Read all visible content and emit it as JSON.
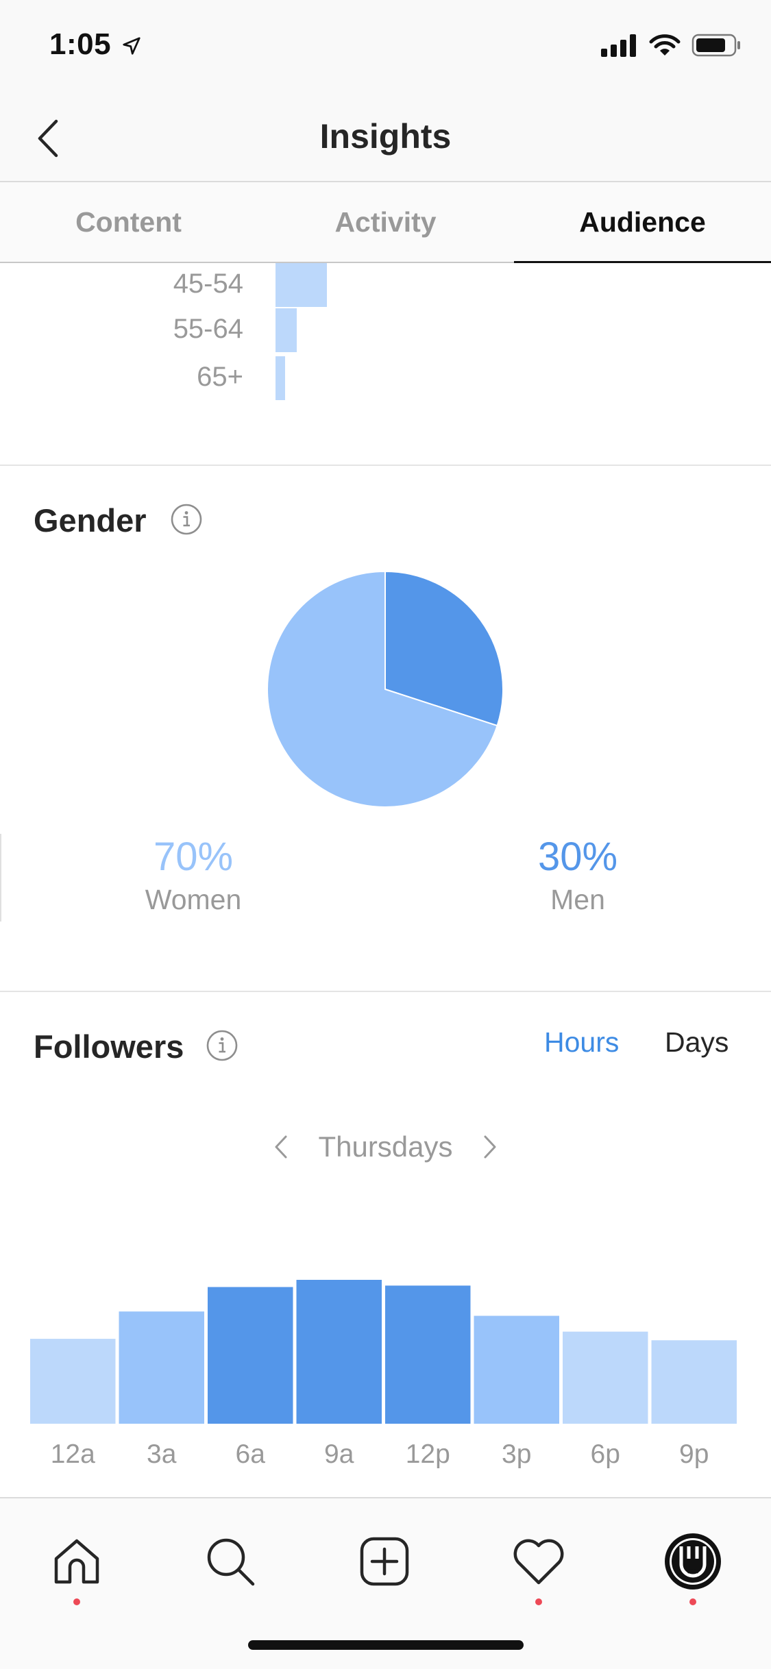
{
  "status_bar": {
    "time": "1:05"
  },
  "nav": {
    "title": "Insights"
  },
  "tabs": [
    {
      "label": "Content",
      "active": false
    },
    {
      "label": "Activity",
      "active": false
    },
    {
      "label": "Audience",
      "active": true
    }
  ],
  "age_chart": {
    "rows": [
      {
        "label": "45-54",
        "fraction": 0.11
      },
      {
        "label": "55-64",
        "fraction": 0.045
      },
      {
        "label": "65+",
        "fraction": 0.02
      }
    ]
  },
  "gender": {
    "title": "Gender",
    "women": {
      "percent": "70%",
      "label": "Women",
      "value": 70,
      "color": "#98c3fa"
    },
    "men": {
      "percent": "30%",
      "label": "Men",
      "value": 30,
      "color": "#5496e9"
    }
  },
  "followers": {
    "title": "Followers",
    "toggle": {
      "hours_label": "Hours",
      "days_label": "Days",
      "active": "Hours"
    },
    "day": "Thursdays",
    "chart_data": {
      "type": "bar",
      "categories": [
        "12a",
        "3a",
        "6a",
        "9a",
        "12p",
        "3p",
        "6p",
        "9p"
      ],
      "values": [
        59,
        78,
        95,
        100,
        96,
        75,
        64,
        58
      ],
      "ylim": [
        0,
        100
      ],
      "colors": [
        "#bcd8fb",
        "#98c3fa",
        "#5496e9",
        "#5496e9",
        "#5496e9",
        "#98c3fa",
        "#bcd8fb",
        "#bcd8fb"
      ]
    }
  },
  "bottom_nav": {
    "items": [
      "home-icon",
      "search-icon",
      "new-post-icon",
      "activity-heart-icon",
      "profile-avatar-icon"
    ]
  }
}
